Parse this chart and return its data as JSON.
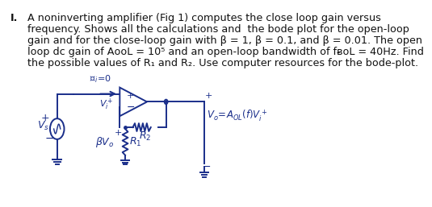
{
  "problem_number": "I.",
  "text_lines": [
    "A noninverting amplifier (Fig 1) computes the close loop gain versus",
    "frequency. Shows all the calculations and  the bode plot for the open-loop",
    "gain and for the close-loop gain with β = 1, β = 0.1, and β = 0.01. The open",
    "loop dc gain of AᴏᴏL = 10⁵ and an open-loop bandwidth of fᴃᴏL = 40Hz. Find",
    "the possible values of R₁ and R₂. Use computer resources for the bode-plot."
  ],
  "background_color": "#ffffff",
  "text_color": "#111111",
  "font_size": 9.2,
  "circuit_color": "#1a2e8a"
}
